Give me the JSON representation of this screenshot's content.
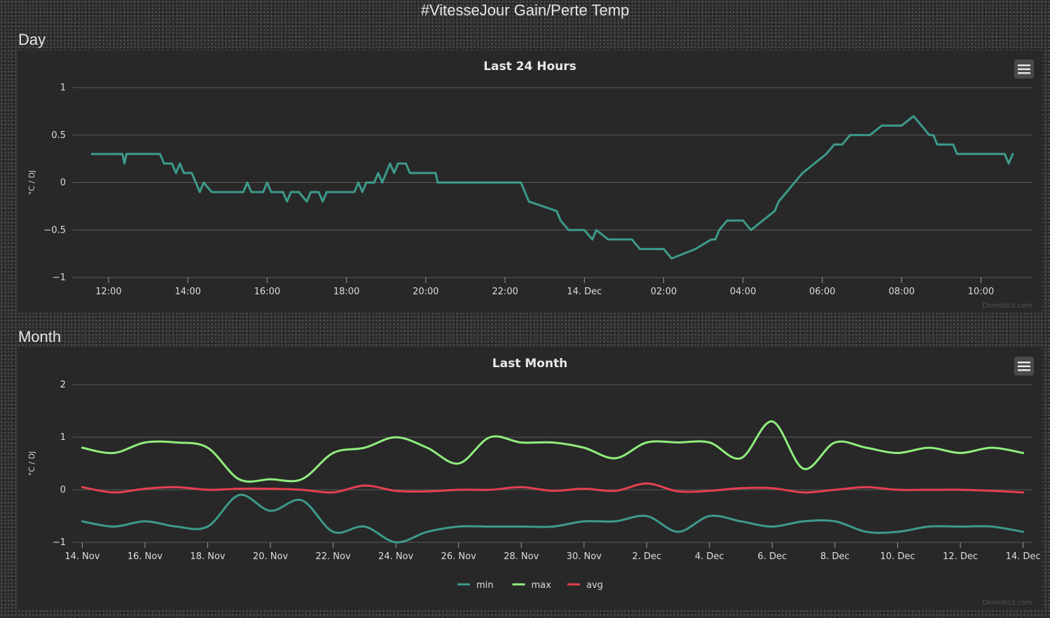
{
  "page": {
    "title": "#VitesseJour Gain/Perte Temp"
  },
  "day": {
    "section_label": "Day",
    "menu_icon": "hamburger-icon",
    "credit": "Domoticz.com"
  },
  "month": {
    "section_label": "Month",
    "menu_icon": "hamburger-icon",
    "credit": "Domoticz.com"
  },
  "chart_data": [
    {
      "type": "line",
      "title": "Last 24 Hours",
      "ylabel": "°C / DJ",
      "xlabel": "",
      "ylim": [
        -1,
        1
      ],
      "yticks": [
        1,
        0.5,
        0,
        -0.5,
        -1
      ],
      "ytick_labels": [
        "1",
        "0.5",
        "0",
        "−0.5",
        "−1"
      ],
      "x_unit": "hours since 12:00 (13 Dec)",
      "xticks": [
        0,
        2,
        4,
        6,
        8,
        10,
        12,
        14,
        16,
        18,
        20,
        22
      ],
      "xtick_labels": [
        "12:00",
        "14:00",
        "16:00",
        "18:00",
        "20:00",
        "22:00",
        "14. Dec",
        "02:00",
        "04:00",
        "06:00",
        "08:00",
        "10:00"
      ],
      "xlim": [
        -0.9,
        23.3
      ],
      "grid": true,
      "color": "#3d9a8b",
      "series": [
        {
          "name": "",
          "x": [
            -0.42,
            0.35,
            0.4,
            0.45,
            1.3,
            1.4,
            1.6,
            1.7,
            1.8,
            1.9,
            2.1,
            2.2,
            2.3,
            2.4,
            2.6,
            3.4,
            3.5,
            3.6,
            3.9,
            4.0,
            4.1,
            4.4,
            4.5,
            4.6,
            4.8,
            5.0,
            5.1,
            5.3,
            5.4,
            5.5,
            5.6,
            5.8,
            6.2,
            6.3,
            6.4,
            6.5,
            6.7,
            6.8,
            6.9,
            7.0,
            7.1,
            7.2,
            7.3,
            7.5,
            7.6,
            7.7,
            7.9,
            8.1,
            8.25,
            8.3,
            8.5,
            9.0,
            9.5,
            10.4,
            10.5,
            10.6,
            11.3,
            11.4,
            11.6,
            12.0,
            12.2,
            12.3,
            12.6,
            12.9,
            13.2,
            13.4,
            13.6,
            14.0,
            14.2,
            14.8,
            15.2,
            15.3,
            15.4,
            15.6,
            16.0,
            16.2,
            16.5,
            16.8,
            16.9,
            17.1,
            17.3,
            17.5,
            17.8,
            18.1,
            18.3,
            18.5,
            18.7,
            19.0,
            19.2,
            19.5,
            19.7,
            20.0,
            20.3,
            20.5,
            20.7,
            20.8,
            20.9,
            21.2,
            21.3,
            21.4,
            21.7,
            22.1,
            22.6,
            22.7,
            22.8
          ],
          "y": [
            0.3,
            0.3,
            0.2,
            0.3,
            0.3,
            0.2,
            0.2,
            0.1,
            0.2,
            0.1,
            0.1,
            0.0,
            -0.1,
            0.0,
            -0.1,
            -0.1,
            0.0,
            -0.1,
            -0.1,
            0.0,
            -0.1,
            -0.1,
            -0.2,
            -0.1,
            -0.1,
            -0.2,
            -0.1,
            -0.1,
            -0.2,
            -0.1,
            -0.1,
            -0.1,
            -0.1,
            0.0,
            -0.1,
            0.0,
            0.0,
            0.1,
            0.0,
            0.1,
            0.2,
            0.1,
            0.2,
            0.2,
            0.1,
            0.1,
            0.1,
            0.1,
            0.1,
            0.0,
            0.0,
            0.0,
            0.0,
            0.0,
            -0.1,
            -0.2,
            -0.3,
            -0.4,
            -0.5,
            -0.5,
            -0.6,
            -0.5,
            -0.6,
            -0.6,
            -0.6,
            -0.7,
            -0.7,
            -0.7,
            -0.8,
            -0.7,
            -0.6,
            -0.6,
            -0.5,
            -0.4,
            -0.4,
            -0.5,
            -0.4,
            -0.3,
            -0.2,
            -0.1,
            0.0,
            0.1,
            0.2,
            0.3,
            0.4,
            0.4,
            0.5,
            0.5,
            0.5,
            0.6,
            0.6,
            0.6,
            0.7,
            0.6,
            0.5,
            0.5,
            0.4,
            0.4,
            0.4,
            0.3,
            0.3,
            0.3,
            0.3,
            0.2,
            0.3
          ]
        }
      ]
    },
    {
      "type": "line",
      "title": "Last Month",
      "ylabel": "°C / DJ",
      "xlabel": "",
      "ylim": [
        -1,
        2
      ],
      "yticks": [
        2,
        1,
        0,
        -1
      ],
      "ytick_labels": [
        "2",
        "1",
        "0",
        "−1"
      ],
      "x_unit": "days since 14 Nov",
      "xticks": [
        0,
        2,
        4,
        6,
        8,
        10,
        12,
        14,
        16,
        18,
        20,
        22,
        24,
        26,
        28,
        30
      ],
      "xtick_labels": [
        "14. Nov",
        "16. Nov",
        "18. Nov",
        "20. Nov",
        "22. Nov",
        "24. Nov",
        "26. Nov",
        "28. Nov",
        "30. Nov",
        "2. Dec",
        "4. Dec",
        "6. Dec",
        "8. Dec",
        "10. Dec",
        "12. Dec",
        "14. Dec"
      ],
      "xlim": [
        -0.3,
        30.3
      ],
      "grid": true,
      "legend": "bottom-center",
      "series": [
        {
          "name": "min",
          "color": "#3d9a8b",
          "values": [
            -0.6,
            -0.7,
            -0.6,
            -0.7,
            -0.7,
            -0.1,
            -0.4,
            -0.2,
            -0.8,
            -0.7,
            -1.0,
            -0.8,
            -0.7,
            -0.7,
            -0.7,
            -0.7,
            -0.6,
            -0.6,
            -0.5,
            -0.8,
            -0.5,
            -0.6,
            -0.7,
            -0.6,
            -0.6,
            -0.8,
            -0.8,
            -0.7,
            -0.7,
            -0.7,
            -0.8
          ]
        },
        {
          "name": "max",
          "color": "#90ee7e",
          "values": [
            0.8,
            0.7,
            0.9,
            0.9,
            0.8,
            0.2,
            0.2,
            0.2,
            0.7,
            0.8,
            1.0,
            0.8,
            0.5,
            1.0,
            0.9,
            0.9,
            0.8,
            0.6,
            0.9,
            0.9,
            0.9,
            0.6,
            1.3,
            0.4,
            0.9,
            0.8,
            0.7,
            0.8,
            0.7,
            0.8,
            0.7
          ]
        },
        {
          "name": "avg",
          "color": "#e4404e",
          "values": [
            0.05,
            -0.05,
            0.02,
            0.05,
            0.0,
            0.02,
            0.02,
            0.0,
            -0.05,
            0.08,
            -0.02,
            -0.03,
            0.0,
            0.0,
            0.05,
            -0.02,
            0.02,
            -0.02,
            0.12,
            -0.03,
            -0.02,
            0.03,
            0.03,
            -0.05,
            0.0,
            0.05,
            0.0,
            0.0,
            0.0,
            -0.02,
            -0.05
          ]
        }
      ]
    }
  ]
}
